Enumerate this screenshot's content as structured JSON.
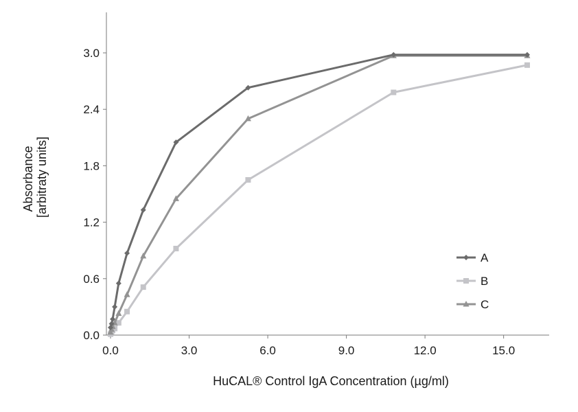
{
  "chart_data": {
    "type": "line",
    "title": "",
    "xlabel": "HuCAL® Control IgA Concentration (µg/ml)",
    "ylabel_lines": [
      "Absorbance",
      "[arbitraty units]"
    ],
    "xlim": [
      0,
      15.9
    ],
    "ylim": [
      0,
      3.0
    ],
    "x_ticks": [
      0.0,
      3.0,
      6.0,
      9.0,
      12.0,
      15.0
    ],
    "x_tick_labels": [
      "0.0",
      "3.0",
      "6.0",
      "9.0",
      "12.0",
      "15.0"
    ],
    "y_ticks": [
      0.0,
      0.6,
      1.2,
      1.8,
      2.4,
      3.0
    ],
    "y_tick_labels": [
      "0.0",
      "0.6",
      "1.2",
      "1.8",
      "2.4",
      "3.0"
    ],
    "grid": false,
    "legend_position": "bottom-right",
    "series": [
      {
        "name": "A",
        "color": "#6b6b6b",
        "marker": "diamond",
        "x": [
          0.0,
          0.04,
          0.08,
          0.16,
          0.31,
          0.63,
          1.25,
          2.5,
          5.25,
          10.8,
          15.9
        ],
        "y": [
          0.08,
          0.12,
          0.17,
          0.3,
          0.55,
          0.87,
          1.33,
          2.05,
          2.63,
          2.98,
          2.98
        ]
      },
      {
        "name": "B",
        "color": "#c4c4c8",
        "marker": "square",
        "x": [
          0.0,
          0.04,
          0.08,
          0.16,
          0.31,
          0.63,
          1.25,
          2.5,
          5.25,
          10.8,
          15.9
        ],
        "y": [
          0.01,
          0.03,
          0.05,
          0.07,
          0.13,
          0.25,
          0.51,
          0.92,
          1.65,
          2.58,
          2.87
        ]
      },
      {
        "name": "C",
        "color": "#939393",
        "marker": "triangle",
        "x": [
          0.0,
          0.04,
          0.08,
          0.16,
          0.31,
          0.63,
          1.25,
          2.5,
          5.25,
          10.8,
          15.9
        ],
        "y": [
          0.03,
          0.06,
          0.09,
          0.13,
          0.23,
          0.43,
          0.84,
          1.45,
          2.3,
          2.97,
          2.97
        ]
      }
    ]
  }
}
